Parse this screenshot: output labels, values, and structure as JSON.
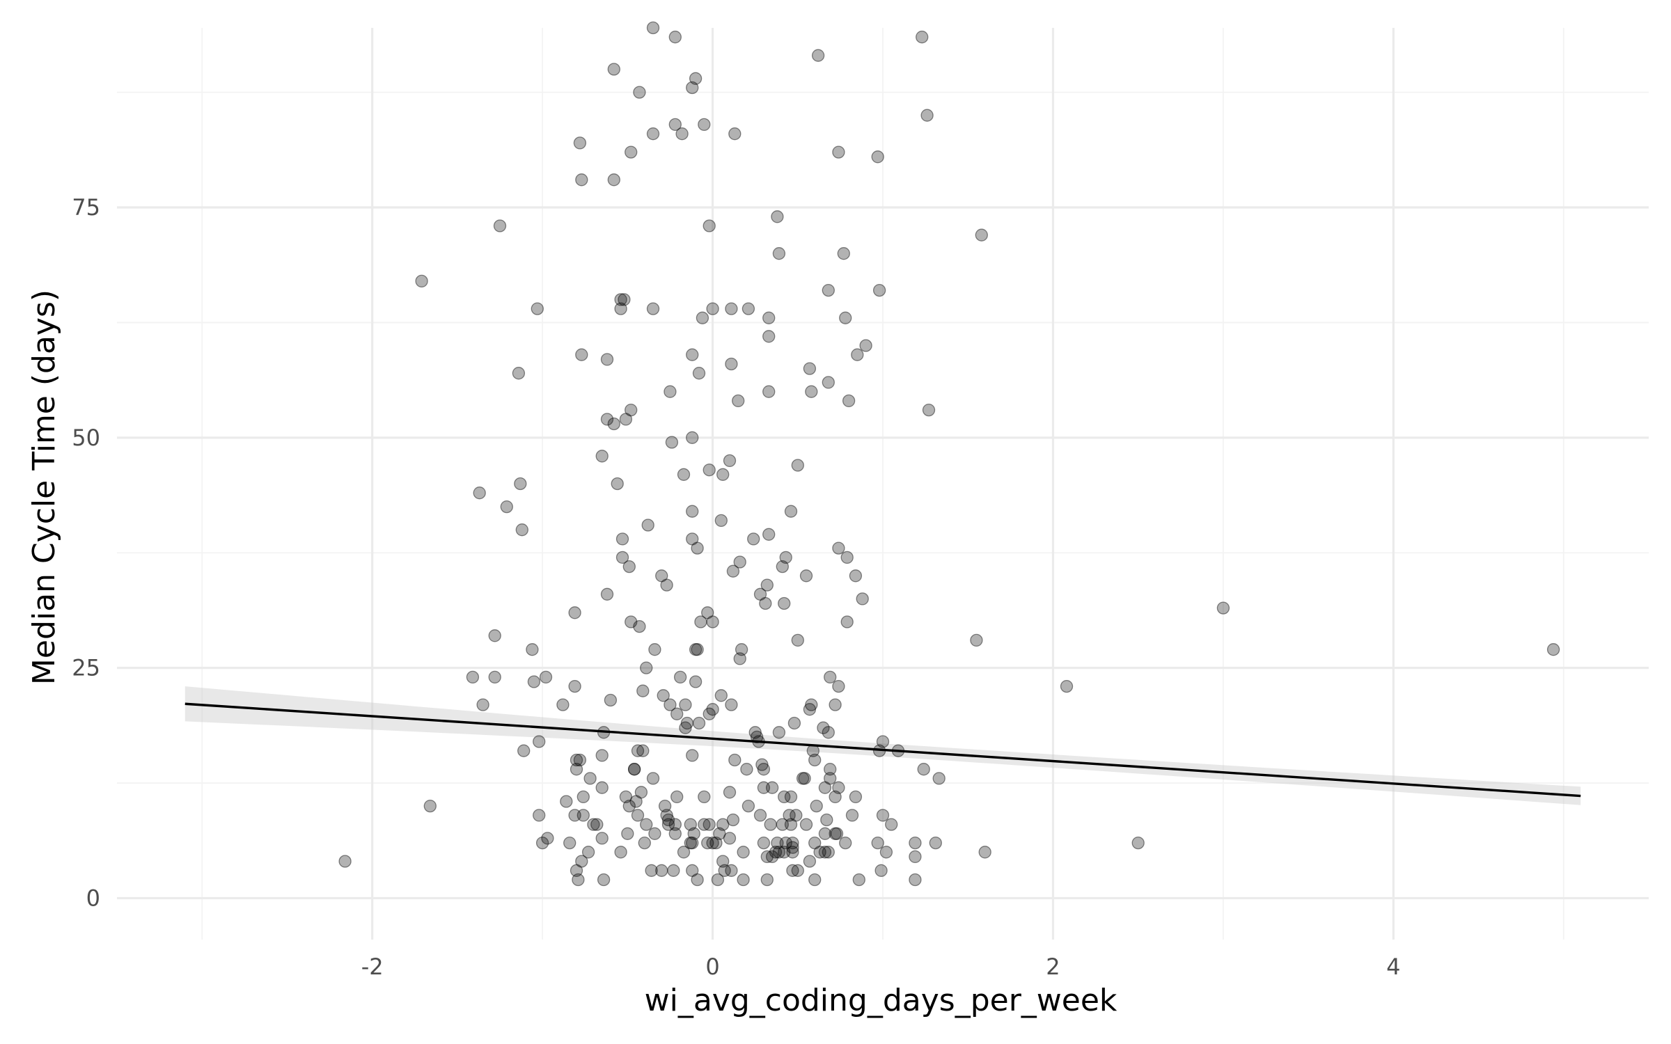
{
  "chart_data": {
    "type": "scatter",
    "title": "",
    "xlabel": "wi_avg_coding_days_per_week",
    "ylabel": "Median Cycle Time (days)",
    "xlim": [
      -3.5,
      5.5
    ],
    "ylim": [
      -4.5,
      94.5
    ],
    "x_ticks": [
      -2,
      0,
      2,
      4
    ],
    "x_tick_labels": [
      "-2",
      "0",
      "2",
      "4"
    ],
    "y_ticks": [
      0,
      25,
      50,
      75
    ],
    "y_tick_labels": [
      "0",
      "25",
      "50",
      "75"
    ],
    "grid": true,
    "legend": "none",
    "colors": {
      "points": "#000000",
      "trend": "#000000",
      "ribbon": "#cccccc",
      "grid": "#ebebeb"
    },
    "trend_line": {
      "method": "lm",
      "x_range": [
        -3.1,
        5.1
      ],
      "y_range": [
        21.1,
        11.1
      ],
      "ci_half_width_at_ends": [
        1.9,
        1.0
      ],
      "ci_half_width_at_center": 0.7
    },
    "points": [
      [
        -0.35,
        94.5
      ],
      [
        -0.22,
        93.5
      ],
      [
        1.23,
        93.5
      ],
      [
        0.62,
        91.5
      ],
      [
        -0.58,
        90
      ],
      [
        -0.1,
        89
      ],
      [
        -0.12,
        88
      ],
      [
        -0.43,
        87.5
      ],
      [
        1.26,
        85
      ],
      [
        -0.22,
        84
      ],
      [
        -0.05,
        84
      ],
      [
        -0.35,
        83
      ],
      [
        -0.18,
        83
      ],
      [
        0.13,
        83
      ],
      [
        -0.78,
        82
      ],
      [
        -0.48,
        81
      ],
      [
        0.74,
        81
      ],
      [
        0.97,
        80.5
      ],
      [
        -0.77,
        78
      ],
      [
        -0.58,
        78
      ],
      [
        0.38,
        74
      ],
      [
        -1.25,
        73
      ],
      [
        -0.02,
        73
      ],
      [
        1.58,
        72
      ],
      [
        0.39,
        70
      ],
      [
        0.77,
        70
      ],
      [
        -1.71,
        67
      ],
      [
        0.68,
        66
      ],
      [
        0.98,
        66
      ],
      [
        -0.54,
        65
      ],
      [
        -0.52,
        65
      ],
      [
        -1.03,
        64
      ],
      [
        -0.54,
        64
      ],
      [
        -0.35,
        64
      ],
      [
        0.0,
        64
      ],
      [
        0.11,
        64
      ],
      [
        0.21,
        64
      ],
      [
        0.33,
        63
      ],
      [
        0.78,
        63
      ],
      [
        -0.06,
        63
      ],
      [
        0.33,
        61
      ],
      [
        0.9,
        60
      ],
      [
        -0.77,
        59
      ],
      [
        -0.12,
        59
      ],
      [
        0.85,
        59
      ],
      [
        -0.62,
        58.5
      ],
      [
        0.11,
        58
      ],
      [
        0.57,
        57.5
      ],
      [
        -1.14,
        57
      ],
      [
        -0.08,
        57
      ],
      [
        0.68,
        56
      ],
      [
        -0.25,
        55
      ],
      [
        0.33,
        55
      ],
      [
        0.58,
        55
      ],
      [
        0.15,
        54
      ],
      [
        0.8,
        54
      ],
      [
        1.27,
        53
      ],
      [
        -0.48,
        53
      ],
      [
        -0.62,
        52
      ],
      [
        -0.51,
        52
      ],
      [
        -0.58,
        51.5
      ],
      [
        -0.24,
        49.5
      ],
      [
        -0.12,
        50
      ],
      [
        0.5,
        47
      ],
      [
        0.1,
        47.5
      ],
      [
        -0.02,
        46.5
      ],
      [
        -0.17,
        46
      ],
      [
        0.06,
        46
      ],
      [
        -0.65,
        48
      ],
      [
        -1.37,
        44
      ],
      [
        -0.56,
        45
      ],
      [
        -1.13,
        45
      ],
      [
        -1.21,
        42.5
      ],
      [
        -0.12,
        42
      ],
      [
        0.46,
        42
      ],
      [
        0.05,
        41
      ],
      [
        -0.38,
        40.5
      ],
      [
        -1.12,
        40
      ],
      [
        -0.53,
        39
      ],
      [
        -0.12,
        39
      ],
      [
        0.24,
        39
      ],
      [
        0.33,
        39.5
      ],
      [
        -0.09,
        38
      ],
      [
        0.74,
        38
      ],
      [
        -0.53,
        37
      ],
      [
        0.16,
        36.5
      ],
      [
        0.43,
        37
      ],
      [
        0.79,
        37
      ],
      [
        -0.49,
        36
      ],
      [
        0.12,
        35.5
      ],
      [
        0.41,
        36
      ],
      [
        0.84,
        35
      ],
      [
        -0.3,
        35
      ],
      [
        0.55,
        35
      ],
      [
        -0.27,
        34
      ],
      [
        0.32,
        34
      ],
      [
        -0.62,
        33
      ],
      [
        0.28,
        33
      ],
      [
        0.88,
        32.5
      ],
      [
        0.31,
        32
      ],
      [
        0.42,
        32
      ],
      [
        -0.81,
        31
      ],
      [
        -0.03,
        31
      ],
      [
        -0.48,
        30
      ],
      [
        -0.07,
        30
      ],
      [
        0.0,
        30
      ],
      [
        0.79,
        30
      ],
      [
        -0.43,
        29.5
      ],
      [
        3.0,
        31.5
      ],
      [
        -1.28,
        28.5
      ],
      [
        0.5,
        28
      ],
      [
        1.55,
        28
      ],
      [
        -1.06,
        27
      ],
      [
        -0.34,
        27
      ],
      [
        -0.09,
        27
      ],
      [
        -0.1,
        27
      ],
      [
        0.17,
        27
      ],
      [
        4.94,
        27
      ],
      [
        0.16,
        26
      ],
      [
        -0.39,
        25
      ],
      [
        -1.41,
        24
      ],
      [
        -1.28,
        24
      ],
      [
        -0.98,
        24
      ],
      [
        -0.19,
        24
      ],
      [
        0.69,
        24
      ],
      [
        -1.05,
        23.5
      ],
      [
        -0.1,
        23.5
      ],
      [
        -0.81,
        23
      ],
      [
        0.74,
        23
      ],
      [
        2.08,
        23
      ],
      [
        -0.41,
        22.5
      ],
      [
        -0.29,
        22
      ],
      [
        0.05,
        22
      ],
      [
        -0.6,
        21.5
      ],
      [
        -1.35,
        21
      ],
      [
        -0.88,
        21
      ],
      [
        -0.25,
        21
      ],
      [
        -0.16,
        21
      ],
      [
        0.11,
        21
      ],
      [
        0.58,
        21
      ],
      [
        0.72,
        21
      ],
      [
        0.0,
        20.5
      ],
      [
        -0.21,
        20
      ],
      [
        -0.02,
        20
      ],
      [
        0.57,
        20.5
      ],
      [
        -0.08,
        19
      ],
      [
        -0.15,
        19
      ],
      [
        0.48,
        19
      ],
      [
        -0.16,
        18.5
      ],
      [
        0.65,
        18.5
      ],
      [
        -0.64,
        18
      ],
      [
        0.25,
        18
      ],
      [
        0.39,
        18
      ],
      [
        0.68,
        18
      ],
      [
        -1.02,
        17
      ],
      [
        0.27,
        17
      ],
      [
        1.0,
        17
      ],
      [
        -0.44,
        16
      ],
      [
        -0.41,
        16
      ],
      [
        0.26,
        17.5
      ],
      [
        -1.11,
        16
      ],
      [
        0.59,
        16
      ],
      [
        0.98,
        16
      ],
      [
        1.09,
        16
      ],
      [
        -0.8,
        15
      ],
      [
        -0.78,
        15
      ],
      [
        -0.65,
        15.5
      ],
      [
        -0.12,
        15.5
      ],
      [
        0.13,
        15
      ],
      [
        0.6,
        15
      ],
      [
        -0.46,
        14
      ],
      [
        -0.46,
        14
      ],
      [
        -0.8,
        14
      ],
      [
        0.2,
        14
      ],
      [
        0.3,
        14
      ],
      [
        0.29,
        14.5
      ],
      [
        0.69,
        14
      ],
      [
        1.24,
        14
      ],
      [
        -0.72,
        13
      ],
      [
        -0.35,
        13
      ],
      [
        0.54,
        13
      ],
      [
        0.53,
        13
      ],
      [
        0.69,
        13
      ],
      [
        1.33,
        13
      ],
      [
        -0.42,
        11.5
      ],
      [
        -0.65,
        12
      ],
      [
        0.3,
        12
      ],
      [
        0.35,
        12
      ],
      [
        0.66,
        12
      ],
      [
        0.74,
        12
      ],
      [
        -0.86,
        10.5
      ],
      [
        -0.76,
        11
      ],
      [
        -0.51,
        11
      ],
      [
        -0.45,
        10.5
      ],
      [
        -0.21,
        11
      ],
      [
        -0.05,
        11
      ],
      [
        0.1,
        11.5
      ],
      [
        0.42,
        11
      ],
      [
        0.46,
        11
      ],
      [
        0.72,
        11
      ],
      [
        0.84,
        11
      ],
      [
        -1.66,
        10
      ],
      [
        -0.49,
        10
      ],
      [
        -0.28,
        10
      ],
      [
        0.21,
        10
      ],
      [
        0.61,
        10
      ],
      [
        -1.02,
        9
      ],
      [
        -0.81,
        9
      ],
      [
        -0.76,
        9
      ],
      [
        -0.44,
        9
      ],
      [
        -0.27,
        9
      ],
      [
        -0.26,
        8.5
      ],
      [
        0.28,
        9
      ],
      [
        0.45,
        9
      ],
      [
        0.49,
        9
      ],
      [
        0.82,
        9
      ],
      [
        1.0,
        9
      ],
      [
        -0.7,
        8
      ],
      [
        -0.68,
        8
      ],
      [
        -0.39,
        8
      ],
      [
        -0.26,
        8
      ],
      [
        -0.22,
        8
      ],
      [
        -0.13,
        8
      ],
      [
        -0.05,
        8
      ],
      [
        -0.02,
        8
      ],
      [
        0.06,
        8
      ],
      [
        0.12,
        8.5
      ],
      [
        0.34,
        8
      ],
      [
        0.41,
        8
      ],
      [
        0.46,
        8
      ],
      [
        0.55,
        8
      ],
      [
        0.67,
        8.5
      ],
      [
        1.05,
        8
      ],
      [
        -0.97,
        6.5
      ],
      [
        -0.84,
        6
      ],
      [
        -0.65,
        6.5
      ],
      [
        -0.5,
        7
      ],
      [
        -0.34,
        7
      ],
      [
        -0.22,
        7
      ],
      [
        -0.11,
        7
      ],
      [
        0.04,
        7
      ],
      [
        0.1,
        6.5
      ],
      [
        0.3,
        6
      ],
      [
        0.43,
        6
      ],
      [
        0.66,
        7
      ],
      [
        0.72,
        7
      ],
      [
        0.73,
        7
      ],
      [
        0.78,
        6
      ],
      [
        -1.0,
        6
      ],
      [
        -0.4,
        6
      ],
      [
        -0.13,
        6
      ],
      [
        -0.12,
        6
      ],
      [
        -0.03,
        6
      ],
      [
        0.0,
        6
      ],
      [
        0.02,
        6
      ],
      [
        0.38,
        6
      ],
      [
        0.42,
        5
      ],
      [
        0.47,
        5.5
      ],
      [
        0.47,
        6
      ],
      [
        0.6,
        6
      ],
      [
        0.97,
        6
      ],
      [
        1.19,
        6
      ],
      [
        1.31,
        6
      ],
      [
        2.5,
        6
      ],
      [
        -0.73,
        5
      ],
      [
        -0.54,
        5
      ],
      [
        -0.17,
        5
      ],
      [
        0.18,
        5
      ],
      [
        0.37,
        5
      ],
      [
        0.35,
        4.5
      ],
      [
        0.47,
        5
      ],
      [
        0.63,
        5
      ],
      [
        0.66,
        5
      ],
      [
        0.68,
        5
      ],
      [
        1.02,
        5
      ],
      [
        1.19,
        4.5
      ],
      [
        1.6,
        5
      ],
      [
        -2.16,
        4
      ],
      [
        -0.77,
        4
      ],
      [
        0.06,
        4
      ],
      [
        0.32,
        4.5
      ],
      [
        0.39,
        5
      ],
      [
        0.57,
        4
      ],
      [
        -0.8,
        3
      ],
      [
        -0.36,
        3
      ],
      [
        -0.23,
        3
      ],
      [
        -0.12,
        3
      ],
      [
        -0.3,
        3
      ],
      [
        0.07,
        3
      ],
      [
        0.11,
        3
      ],
      [
        0.47,
        3
      ],
      [
        0.5,
        3
      ],
      [
        0.99,
        3
      ],
      [
        -0.79,
        2
      ],
      [
        -0.64,
        2
      ],
      [
        -0.09,
        2
      ],
      [
        0.03,
        2
      ],
      [
        0.18,
        2
      ],
      [
        0.32,
        2
      ],
      [
        0.6,
        2
      ],
      [
        0.86,
        2
      ],
      [
        1.19,
        2
      ]
    ]
  }
}
